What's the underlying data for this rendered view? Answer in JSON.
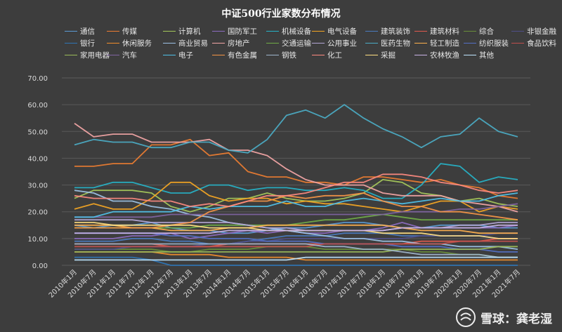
{
  "chart_data": {
    "type": "line",
    "title": "中证500行业家数分布情况",
    "ylim": [
      0,
      70
    ],
    "yticks": [
      "0.00",
      "10.00",
      "20.00",
      "30.00",
      "40.00",
      "50.00",
      "60.00",
      "70.00"
    ],
    "categories": [
      "2010年1月",
      "2010年7月",
      "2011年1月",
      "2011年7月",
      "2012年1月",
      "2012年7月",
      "2013年1月",
      "2013年7月",
      "2014年1月",
      "2014年7月",
      "2015年1月",
      "2015年7月",
      "2016年1月",
      "2016年7月",
      "2017年1月",
      "2017年7月",
      "2018年1月",
      "2018年7月",
      "2019年1月",
      "2019年7月",
      "2020年1月",
      "2020年7月",
      "2021年1月",
      "2021年7月"
    ],
    "series": [
      {
        "name": "通信",
        "color": "#5b9bd5",
        "values": [
          15,
          14,
          15,
          15,
          16,
          14,
          13,
          13,
          12,
          12,
          13,
          14,
          14,
          15,
          16,
          16,
          15,
          14,
          14,
          15,
          15,
          15,
          14,
          14
        ]
      },
      {
        "name": "传媒",
        "color": "#ed7d31",
        "values": [
          37,
          37,
          38,
          38,
          45,
          45,
          47,
          41,
          42,
          35,
          33,
          33,
          31,
          31,
          30,
          33,
          33,
          32,
          31,
          32,
          30,
          29,
          26,
          25
        ]
      },
      {
        "name": "计算机",
        "color": "#a5c85a",
        "values": [
          25,
          28,
          28,
          28,
          27,
          22,
          20,
          22,
          25,
          25,
          27,
          25,
          24,
          24,
          25,
          27,
          32,
          31,
          27,
          26,
          24,
          25,
          23,
          22
        ]
      },
      {
        "name": "国防军工",
        "color": "#8c6bc1",
        "values": [
          10,
          10,
          10,
          11,
          11,
          12,
          10,
          11,
          12,
          13,
          12,
          13,
          12,
          12,
          13,
          13,
          14,
          16,
          14,
          14,
          14,
          14,
          14,
          15
        ]
      },
      {
        "name": "机械设备",
        "color": "#26b3c8",
        "values": [
          29,
          29,
          31,
          31,
          29,
          27,
          27,
          30,
          30,
          28,
          29,
          29,
          28,
          28,
          29,
          28,
          25,
          25,
          30,
          38,
          37,
          31,
          33,
          32
        ]
      },
      {
        "name": "电气设备",
        "color": "#f5a623",
        "values": [
          21,
          23,
          21,
          21,
          25,
          31,
          31,
          26,
          24,
          25,
          25,
          23,
          24,
          23,
          23,
          22,
          21,
          20,
          22,
          24,
          24,
          20,
          22,
          21
        ]
      },
      {
        "name": "建筑装饰",
        "color": "#4a7bbf",
        "values": [
          9,
          9,
          9,
          10,
          10,
          9,
          9,
          8,
          8,
          9,
          10,
          11,
          11,
          11,
          12,
          12,
          12,
          11,
          11,
          11,
          11,
          11,
          10,
          10
        ]
      },
      {
        "name": "建筑材料",
        "color": "#e05a4e",
        "values": [
          8,
          8,
          8,
          8,
          8,
          7,
          7,
          7,
          8,
          8,
          8,
          8,
          8,
          8,
          8,
          8,
          8,
          8,
          9,
          9,
          9,
          9,
          10,
          10
        ]
      },
      {
        "name": "综合",
        "color": "#6a8f3a",
        "values": [
          6,
          6,
          6,
          6,
          6,
          5,
          5,
          6,
          6,
          6,
          7,
          7,
          7,
          6,
          6,
          6,
          6,
          6,
          5,
          5,
          4,
          4,
          3,
          3
        ]
      },
      {
        "name": "非银金融",
        "color": "#4f4f8a",
        "values": [
          6,
          6,
          6,
          7,
          7,
          7,
          7,
          8,
          8,
          9,
          9,
          10,
          10,
          10,
          10,
          10,
          10,
          10,
          11,
          11,
          11,
          11,
          12,
          12
        ]
      },
      {
        "name": "银行",
        "color": "#2e75b6",
        "values": [
          3,
          3,
          3,
          3,
          2,
          0,
          0,
          0,
          0,
          0,
          0,
          0,
          0,
          0,
          0,
          0,
          0,
          0,
          0,
          0,
          0,
          0,
          0,
          0
        ]
      },
      {
        "name": "休闲服务",
        "color": "#f28e2b",
        "values": [
          5,
          5,
          5,
          5,
          5,
          4,
          4,
          4,
          3,
          3,
          3,
          3,
          2,
          2,
          2,
          2,
          2,
          2,
          2,
          2,
          2,
          2,
          2,
          2
        ]
      },
      {
        "name": "商业贸易",
        "color": "#9dc3e6",
        "values": [
          28,
          27,
          24,
          24,
          22,
          21,
          19,
          18,
          16,
          15,
          14,
          13,
          12,
          11,
          10,
          10,
          9,
          9,
          8,
          8,
          7,
          7,
          7,
          6
        ]
      },
      {
        "name": "房地产",
        "color": "#f4a6a6",
        "values": [
          53,
          48,
          49,
          49,
          46,
          46,
          46,
          47,
          43,
          43,
          41,
          36,
          32,
          30,
          30,
          30,
          27,
          26,
          26,
          26,
          24,
          23,
          22,
          20
        ]
      },
      {
        "name": "交通运输",
        "color": "#70ad47",
        "values": [
          14,
          14,
          14,
          14,
          14,
          14,
          14,
          15,
          15,
          15,
          15,
          15,
          16,
          17,
          17,
          18,
          19,
          18,
          17,
          17,
          17,
          17,
          17,
          17
        ]
      },
      {
        "name": "公用事业",
        "color": "#b4a7d6",
        "values": [
          17,
          17,
          17,
          17,
          16,
          16,
          16,
          16,
          16,
          15,
          14,
          14,
          13,
          13,
          13,
          13,
          13,
          14,
          14,
          14,
          15,
          15,
          16,
          16
        ]
      },
      {
        "name": "医药生物",
        "color": "#4bacc6",
        "values": [
          45,
          47,
          46,
          46,
          44,
          44,
          46,
          46,
          43,
          42,
          47,
          56,
          58,
          55,
          60,
          55,
          51,
          48,
          44,
          48,
          49,
          55,
          50,
          48
        ]
      },
      {
        "name": "轻工制造",
        "color": "#ffb14e",
        "values": [
          15,
          15,
          15,
          14,
          14,
          13,
          13,
          13,
          14,
          14,
          15,
          15,
          15,
          15,
          15,
          15,
          15,
          14,
          13,
          13,
          13,
          12,
          12,
          12
        ]
      },
      {
        "name": "纺织服装",
        "color": "#5470c6",
        "values": [
          12,
          12,
          12,
          12,
          12,
          11,
          11,
          10,
          10,
          10,
          9,
          9,
          9,
          8,
          8,
          8,
          8,
          7,
          7,
          7,
          6,
          6,
          5,
          5
        ]
      },
      {
        "name": "食品饮料",
        "color": "#c0504d",
        "values": [
          7,
          7,
          7,
          7,
          7,
          7,
          7,
          7,
          7,
          7,
          7,
          7,
          7,
          8,
          8,
          8,
          8,
          8,
          8,
          8,
          9,
          9,
          9,
          9
        ]
      },
      {
        "name": "家用电器",
        "color": "#9bbb59",
        "values": [
          5,
          5,
          5,
          5,
          5,
          5,
          5,
          5,
          5,
          5,
          5,
          5,
          5,
          5,
          5,
          5,
          5,
          6,
          6,
          6,
          6,
          6,
          7,
          7
        ]
      },
      {
        "name": "汽车",
        "color": "#8064a2",
        "values": [
          18,
          18,
          18,
          18,
          18,
          19,
          19,
          19,
          19,
          19,
          19,
          19,
          19,
          19,
          19,
          19,
          19,
          20,
          20,
          20,
          21,
          21,
          22,
          23
        ]
      },
      {
        "name": "电子",
        "color": "#4fc1e9",
        "values": [
          18,
          18,
          20,
          20,
          20,
          20,
          22,
          21,
          22,
          22,
          22,
          24,
          22,
          22,
          24,
          25,
          24,
          23,
          24,
          25,
          24,
          24,
          26,
          27
        ]
      },
      {
        "name": "有色金属",
        "color": "#f79646",
        "values": [
          14,
          14,
          14,
          14,
          14,
          15,
          16,
          20,
          22,
          24,
          24,
          26,
          25,
          26,
          26,
          27,
          24,
          22,
          22,
          20,
          20,
          19,
          18,
          17
        ]
      },
      {
        "name": "钢铁",
        "color": "#9fb6cd",
        "values": [
          8,
          8,
          8,
          8,
          8,
          8,
          8,
          8,
          8,
          8,
          8,
          8,
          8,
          7,
          7,
          6,
          6,
          5,
          4,
          4,
          4,
          4,
          3,
          3
        ]
      },
      {
        "name": "化工",
        "color": "#ff8a80",
        "values": [
          26,
          25,
          25,
          25,
          24,
          24,
          22,
          23,
          22,
          24,
          26,
          26,
          27,
          29,
          31,
          31,
          34,
          34,
          33,
          31,
          30,
          28,
          27,
          28
        ]
      },
      {
        "name": "采掘",
        "color": "#ffe082",
        "values": [
          16,
          16,
          15,
          15,
          15,
          15,
          15,
          14,
          14,
          14,
          13,
          13,
          13,
          13,
          13,
          13,
          12,
          12,
          12,
          11,
          11,
          11,
          10,
          10
        ]
      },
      {
        "name": "农林牧渔",
        "color": "#c9b3e6",
        "values": [
          12,
          12,
          12,
          12,
          12,
          12,
          12,
          12,
          13,
          13,
          13,
          13,
          13,
          13,
          13,
          13,
          13,
          14,
          14,
          14,
          14,
          14,
          15,
          15
        ]
      },
      {
        "name": "其他",
        "color": "#bfe6ff",
        "values": [
          2,
          2,
          2,
          2,
          2,
          2,
          2,
          2,
          2,
          2,
          2,
          2,
          3,
          3,
          3,
          3,
          3,
          3,
          3,
          3,
          3,
          3,
          3,
          3
        ]
      }
    ]
  },
  "watermark": {
    "brand": "雪球",
    "separator": "：",
    "author": "龚老湿"
  }
}
